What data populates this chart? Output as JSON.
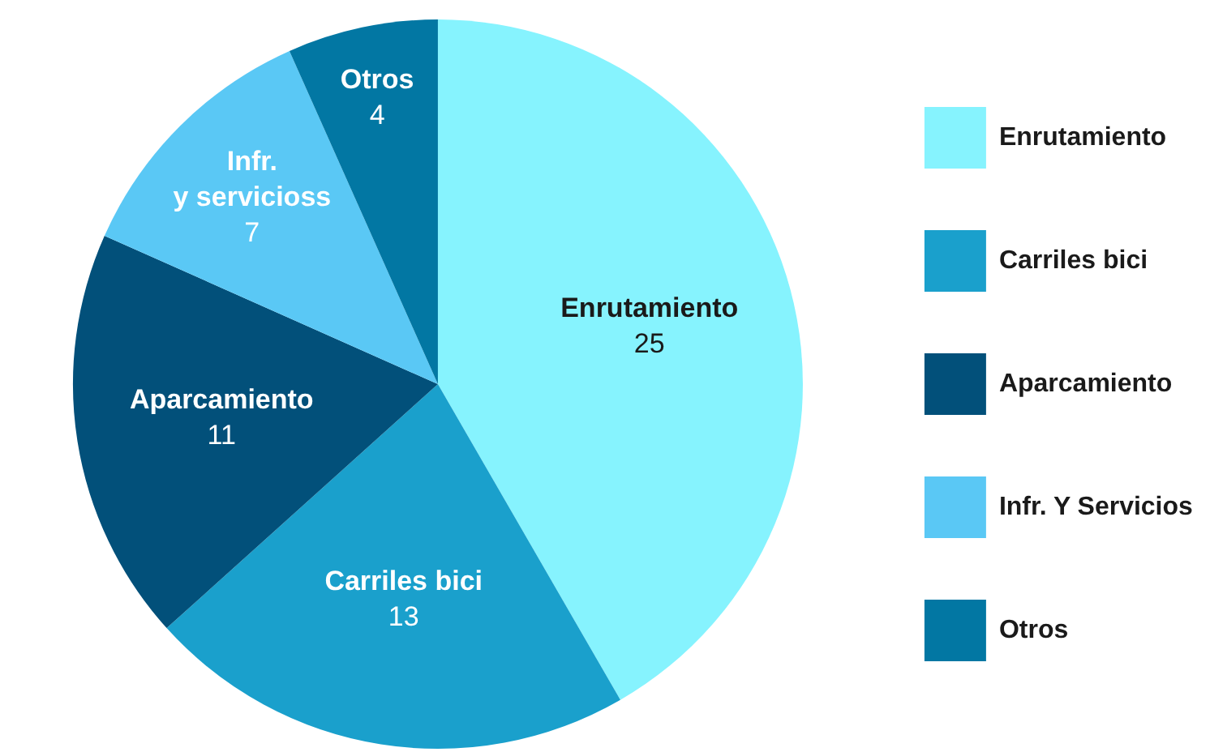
{
  "chart_data": {
    "type": "pie",
    "categories": [
      "Enrutamiento",
      "Carriles bici",
      "Aparcamiento",
      "Infr. Y Servicios",
      "Otros"
    ],
    "values": [
      25,
      13,
      11,
      7,
      4
    ],
    "colors": [
      "#86f3fe",
      "#1aa0cc",
      "#02507a",
      "#5ac8f5",
      "#0277a3"
    ],
    "annotations": [
      "Enrutamiento",
      "Carriles bici",
      "Aparcamiento",
      "Infr.\ny servicioss",
      "Otros"
    ],
    "data_labels": true,
    "legend": "right"
  }
}
